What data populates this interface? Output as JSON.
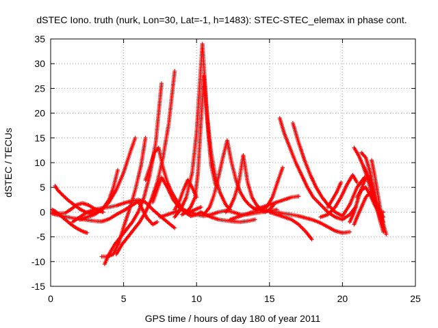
{
  "chart_data": {
    "type": "scatter",
    "title": "dSTEC Iono. truth (nurk, Lon=30, Lat=-1, h=1483): STEC-STEC_elemax in phase cont.",
    "xlabel": "GPS time / hours of day 180 of year 2011",
    "ylabel": "dSTEC  / TECUs",
    "xlim": [
      0,
      25
    ],
    "ylim": [
      -15,
      35
    ],
    "xticks": [
      "0",
      "5",
      "10",
      "15",
      "20",
      "25"
    ],
    "yticks": [
      "-15",
      "-10",
      "-5",
      "0",
      "5",
      "10",
      "15",
      "20",
      "25",
      "30",
      "35"
    ],
    "grid": true,
    "marker": "+",
    "color": "#ff0000",
    "series": [
      {
        "x": [
          0.1,
          0.3,
          0.6,
          1.0,
          1.4,
          1.8,
          2.2,
          2.5
        ],
        "y": [
          0.5,
          0.2,
          -0.5,
          -1.5,
          -2.5,
          -3.3,
          -3.9,
          -4.2
        ]
      },
      {
        "x": [
          0.3,
          0.5,
          0.8,
          1.2,
          1.6,
          2.0,
          2.4,
          2.8,
          3.2,
          3.6,
          4.0,
          4.3,
          4.6
        ],
        "y": [
          5.3,
          4.4,
          3.5,
          2.4,
          1.5,
          0.6,
          0.0,
          -0.3,
          0.0,
          0.8,
          2.5,
          5.0,
          8.5
        ]
      },
      {
        "x": [
          0.1,
          0.5,
          1.0,
          1.5,
          1.8,
          2.2,
          2.6,
          3.0,
          3.4,
          3.6
        ],
        "y": [
          0.0,
          -0.3,
          -0.2,
          0.8,
          1.5,
          1.8,
          1.4,
          0.7,
          0.2,
          0.0
        ]
      },
      {
        "x": [
          0.1,
          0.5,
          1.0,
          1.5,
          2.0,
          2.5,
          3.0,
          3.5,
          4.0,
          4.5,
          5.0,
          5.5,
          6.0,
          6.3,
          6.6,
          7.0,
          7.3
        ],
        "y": [
          -0.3,
          -0.6,
          -0.9,
          -1.2,
          -1.4,
          -1.6,
          -1.8,
          -1.9,
          -1.4,
          -0.5,
          0.3,
          1.2,
          2.2,
          0.5,
          -1.2,
          -2.5,
          -2.0
        ]
      },
      {
        "x": [
          1.5,
          2.0,
          2.5,
          3.0,
          3.5,
          4.0,
          4.5,
          5.0,
          5.5,
          6.0,
          6.5,
          7.0,
          7.5,
          8.0,
          8.5
        ],
        "y": [
          -2.0,
          -1.0,
          0.0,
          0.5,
          0.8,
          1.0,
          1.3,
          1.8,
          2.2,
          2.5,
          2.0,
          0.5,
          -0.8,
          -2.0,
          -3.2
        ]
      },
      {
        "x": [
          2.0,
          2.5,
          3.0,
          3.5,
          4.0,
          4.5,
          5.0,
          5.5,
          5.8
        ],
        "y": [
          -1.5,
          -1.0,
          -0.5,
          0.5,
          2.0,
          4.5,
          8.0,
          12.5,
          15.0
        ]
      },
      {
        "x": [
          3.5,
          3.9,
          4.3,
          4.7,
          5.0,
          5.4,
          5.8,
          6.2,
          6.5
        ],
        "y": [
          -9.0,
          -9.0,
          -8.5,
          -6.0,
          -3.0,
          0.5,
          4.5,
          9.5,
          15.0
        ]
      },
      {
        "x": [
          3.7,
          4.0,
          4.4,
          4.8,
          5.2,
          5.6,
          6.0,
          6.4,
          6.8,
          7.2,
          7.6
        ],
        "y": [
          -10.5,
          -8.5,
          -6.5,
          -5.0,
          -3.5,
          -2.0,
          0.0,
          3.0,
          7.5,
          14.0,
          26.0
        ]
      },
      {
        "x": [
          4.5,
          4.9,
          5.3,
          5.7,
          6.1,
          6.5,
          6.9,
          7.3,
          7.7,
          8.1,
          8.5
        ],
        "y": [
          -8.5,
          -6.5,
          -5.0,
          -3.5,
          -2.0,
          0.0,
          2.5,
          6.0,
          11.0,
          18.0,
          28.5
        ]
      },
      {
        "x": [
          6.5,
          6.8,
          7.1,
          7.4,
          7.7,
          8.0,
          8.3,
          8.7,
          9.1,
          9.5,
          9.9,
          10.3
        ],
        "y": [
          6.5,
          9.0,
          12.0,
          13.0,
          9.0,
          6.0,
          4.0,
          2.0,
          0.5,
          0.0,
          0.5,
          1.0
        ]
      },
      {
        "x": [
          7.0,
          7.3,
          7.6,
          8.0,
          8.4,
          8.8,
          9.2,
          9.6,
          10.0,
          10.3,
          10.6,
          11.0,
          11.5,
          12.0,
          12.5,
          13.0,
          13.5,
          14.0
        ],
        "y": [
          2.0,
          4.5,
          7.0,
          5.0,
          2.5,
          1.0,
          0.0,
          -0.8,
          -0.5,
          0.0,
          -0.5,
          -1.0,
          -1.5,
          -1.7,
          -1.9,
          -2.0,
          -1.8,
          -1.5
        ]
      },
      {
        "x": [
          7.5,
          8.0,
          8.5,
          9.0,
          9.5,
          10.0,
          10.5,
          11.0,
          11.5,
          12.0,
          12.5,
          13.0,
          13.5,
          14.0,
          14.5,
          15.0,
          15.5
        ],
        "y": [
          -1.0,
          -0.5,
          0.0,
          0.5,
          0.0,
          -0.5,
          -0.8,
          -0.5,
          0.0,
          0.3,
          0.0,
          -0.5,
          -0.5,
          -0.2,
          0.0,
          0.3,
          0.5
        ]
      },
      {
        "x": [
          8.5,
          8.9,
          9.3,
          9.7,
          10.0,
          10.2,
          10.4,
          10.6,
          10.8,
          11.0,
          11.3
        ],
        "y": [
          -1.0,
          0.5,
          3.0,
          8.0,
          16.0,
          25.0,
          34.0,
          25.0,
          16.0,
          9.5,
          5.5
        ]
      },
      {
        "x": [
          9.0,
          9.3,
          9.6,
          9.9,
          10.1,
          10.3,
          10.5,
          10.7,
          11.0,
          11.3,
          11.6,
          12.0,
          12.3
        ],
        "y": [
          -0.5,
          0.0,
          1.0,
          3.0,
          8.0,
          18.0,
          27.5,
          20.0,
          12.0,
          7.0,
          4.0,
          1.5,
          0.5
        ]
      },
      {
        "x": [
          8.5,
          8.8,
          9.1,
          9.4,
          9.7,
          10.0
        ],
        "y": [
          0.5,
          2.0,
          4.5,
          6.5,
          5.0,
          3.0
        ]
      },
      {
        "x": [
          10.5,
          10.9,
          11.2,
          11.5,
          11.8,
          12.1,
          12.4,
          12.7,
          13.0,
          13.3,
          13.6,
          13.9,
          14.2,
          14.5
        ],
        "y": [
          -0.5,
          1.0,
          3.5,
          7.0,
          11.0,
          14.5,
          10.0,
          6.5,
          4.0,
          2.5,
          1.5,
          0.8,
          0.5,
          0.3
        ]
      },
      {
        "x": [
          12.0,
          12.3,
          12.6,
          12.9,
          13.2,
          13.5,
          13.8,
          14.1,
          14.4,
          14.7,
          15.0,
          15.3
        ],
        "y": [
          0.0,
          1.0,
          3.0,
          6.0,
          11.5,
          6.0,
          3.0,
          1.5,
          0.5,
          0.0,
          0.5,
          1.5
        ]
      },
      {
        "x": [
          12.3,
          12.8,
          13.3,
          13.8,
          14.3,
          14.8,
          15.2,
          15.6,
          15.9
        ],
        "y": [
          -1.5,
          -1.0,
          -0.5,
          0.0,
          0.3,
          1.0,
          3.0,
          6.5,
          9.0
        ]
      },
      {
        "x": [
          14.0,
          14.5,
          15.0,
          15.5,
          16.0,
          16.5,
          17.0
        ],
        "y": [
          0.5,
          1.0,
          1.5,
          2.0,
          2.5,
          3.0,
          3.2
        ]
      },
      {
        "x": [
          15.0,
          15.5,
          16.0,
          16.5,
          17.0,
          17.5,
          17.9
        ],
        "y": [
          0.0,
          -0.5,
          -1.0,
          -1.5,
          -2.5,
          -4.0,
          -5.5
        ]
      },
      {
        "x": [
          14.5,
          15.0,
          15.5,
          16.0,
          16.5,
          17.0,
          17.5,
          18.0,
          18.5,
          19.0,
          19.5,
          20.0,
          20.5
        ],
        "y": [
          0.5,
          0.2,
          0.0,
          -0.3,
          -0.5,
          -0.8,
          -1.2,
          -1.6,
          -2.2,
          -3.0,
          -3.8,
          -4.2,
          -4.0
        ]
      },
      {
        "x": [
          15.7,
          16.0,
          16.4,
          16.8,
          17.2,
          17.6,
          18.0,
          18.5,
          19.0,
          19.5,
          20.0,
          20.5,
          20.9
        ],
        "y": [
          19.0,
          16.0,
          13.0,
          10.0,
          7.5,
          5.0,
          3.0,
          1.5,
          0.0,
          -1.0,
          -1.5,
          -0.5,
          1.0
        ]
      },
      {
        "x": [
          16.6,
          17.0,
          17.4,
          17.8,
          18.2,
          18.6,
          19.0,
          19.5,
          20.0,
          20.5,
          21.0,
          21.5
        ],
        "y": [
          18.0,
          14.0,
          10.5,
          7.5,
          5.0,
          3.0,
          1.5,
          0.0,
          -0.8,
          1.5,
          5.0,
          7.0
        ]
      },
      {
        "x": [
          18.5,
          19.0,
          19.5,
          19.9,
          20.3,
          20.7,
          21.0
        ],
        "y": [
          -1.0,
          -0.5,
          1.0,
          3.0,
          5.5,
          7.5,
          6.0
        ]
      },
      {
        "x": [
          19.0,
          19.3,
          19.6,
          19.9
        ],
        "y": [
          1.0,
          2.5,
          4.0,
          6.0
        ]
      },
      {
        "x": [
          20.8,
          21.1,
          21.4,
          21.7,
          22.0,
          22.3,
          22.6,
          22.8
        ],
        "y": [
          13.0,
          11.5,
          9.5,
          7.0,
          4.0,
          1.0,
          -1.5,
          -3.0
        ]
      },
      {
        "x": [
          20.5,
          20.8,
          21.1,
          21.4,
          21.7,
          22.0,
          22.3,
          22.6,
          22.8
        ],
        "y": [
          -2.0,
          0.0,
          3.0,
          5.5,
          7.5,
          5.0,
          2.0,
          -0.5,
          -2.0
        ]
      },
      {
        "x": [
          21.3,
          21.6,
          21.9,
          22.1,
          22.3,
          22.6,
          22.8
        ],
        "y": [
          12.0,
          11.0,
          8.0,
          5.0,
          2.0,
          0.0,
          -1.0
        ]
      },
      {
        "x": [
          21.0,
          21.3,
          21.6,
          21.9,
          22.2,
          22.5,
          22.8
        ],
        "y": [
          3.0,
          4.5,
          5.0,
          3.5,
          1.5,
          0.0,
          0.0
        ]
      },
      {
        "x": [
          21.5,
          21.8,
          22.0,
          22.2,
          22.4,
          22.6,
          22.8
        ],
        "y": [
          9.0,
          7.0,
          5.5,
          3.0,
          0.5,
          -2.0,
          -4.0
        ]
      },
      {
        "x": [
          20.8,
          21.0,
          21.3,
          21.6,
          21.9,
          22.2
        ],
        "y": [
          -2.5,
          -1.0,
          1.0,
          3.0,
          4.0,
          3.0
        ]
      },
      {
        "x": [
          22.0,
          22.2,
          22.4,
          22.6,
          22.8,
          23.0
        ],
        "y": [
          10.5,
          7.5,
          4.0,
          0.5,
          -2.5,
          -4.5
        ]
      }
    ]
  }
}
